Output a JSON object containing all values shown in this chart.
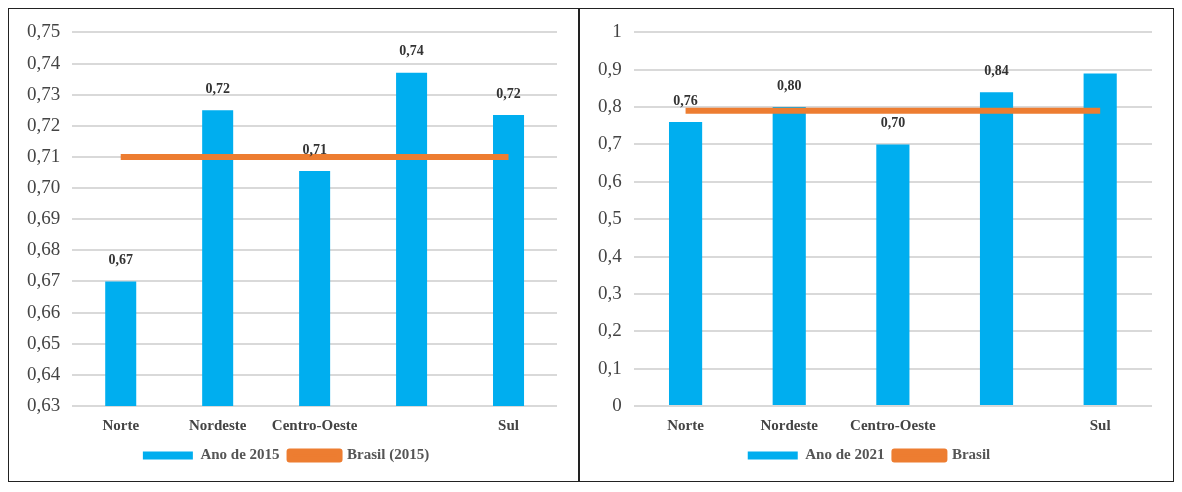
{
  "chart_data": [
    {
      "type": "bar",
      "categories": [
        "Norte",
        "Nordeste",
        "Centro-Oeste",
        null,
        "Sul"
      ],
      "series": [
        {
          "name": "Ano de 2015",
          "color": "#00aeef",
          "values": [
            0.67,
            0.725,
            0.7055,
            0.737,
            0.7235
          ],
          "value_labels": [
            "0,67",
            "0,72",
            "0,71",
            "0,74",
            "0,72"
          ]
        },
        {
          "name": "Brasil (2015)",
          "type": "line",
          "color": "#ed7d31",
          "values": [
            0.71,
            0.71,
            0.71,
            0.71,
            0.71
          ]
        }
      ],
      "ylim": [
        0.63,
        0.75
      ],
      "yticks": [
        {
          "value": 0.63,
          "label": "0,63"
        },
        {
          "value": 0.64,
          "label": "0,64"
        },
        {
          "value": 0.65,
          "label": "0,65"
        },
        {
          "value": 0.66,
          "label": "0,66"
        },
        {
          "value": 0.67,
          "label": "0,67"
        },
        {
          "value": 0.68,
          "label": "0,68"
        },
        {
          "value": 0.69,
          "label": "0,69"
        },
        {
          "value": 0.7,
          "label": "0,70"
        },
        {
          "value": 0.71,
          "label": "0,71"
        },
        {
          "value": 0.72,
          "label": "0,72"
        },
        {
          "value": 0.73,
          "label": "0,73"
        },
        {
          "value": 0.74,
          "label": "0,74"
        },
        {
          "value": 0.75,
          "label": "0,75"
        }
      ],
      "grid": "y",
      "legend": "bottom",
      "marker": "none"
    },
    {
      "type": "bar",
      "categories": [
        "Norte",
        "Nordeste",
        "Centro-Oeste",
        null,
        "Sul"
      ],
      "series": [
        {
          "name": "Ano de 2021",
          "color": "#00aeef",
          "values": [
            0.76,
            0.8,
            0.7,
            0.84,
            0.89
          ],
          "value_labels": [
            "0,76",
            "0,80",
            "0,70",
            "0,84",
            null
          ]
        },
        {
          "name": "Brasil",
          "type": "line",
          "color": "#ed7d31",
          "values": [
            0.79,
            0.79,
            0.79,
            0.79,
            0.79
          ]
        }
      ],
      "ylim": [
        0,
        1
      ],
      "yticks": [
        {
          "value": 0,
          "label": "0"
        },
        {
          "value": 0.1,
          "label": "0,1"
        },
        {
          "value": 0.2,
          "label": "0,2"
        },
        {
          "value": 0.3,
          "label": "0,3"
        },
        {
          "value": 0.4,
          "label": "0,4"
        },
        {
          "value": 0.5,
          "label": "0,5"
        },
        {
          "value": 0.6,
          "label": "0,6"
        },
        {
          "value": 0.7,
          "label": "0,7"
        },
        {
          "value": 0.8,
          "label": "0,8"
        },
        {
          "value": 0.9,
          "label": "0,9"
        },
        {
          "value": 1,
          "label": "1"
        }
      ],
      "grid": "y",
      "legend": "bottom",
      "marker": "none"
    }
  ]
}
